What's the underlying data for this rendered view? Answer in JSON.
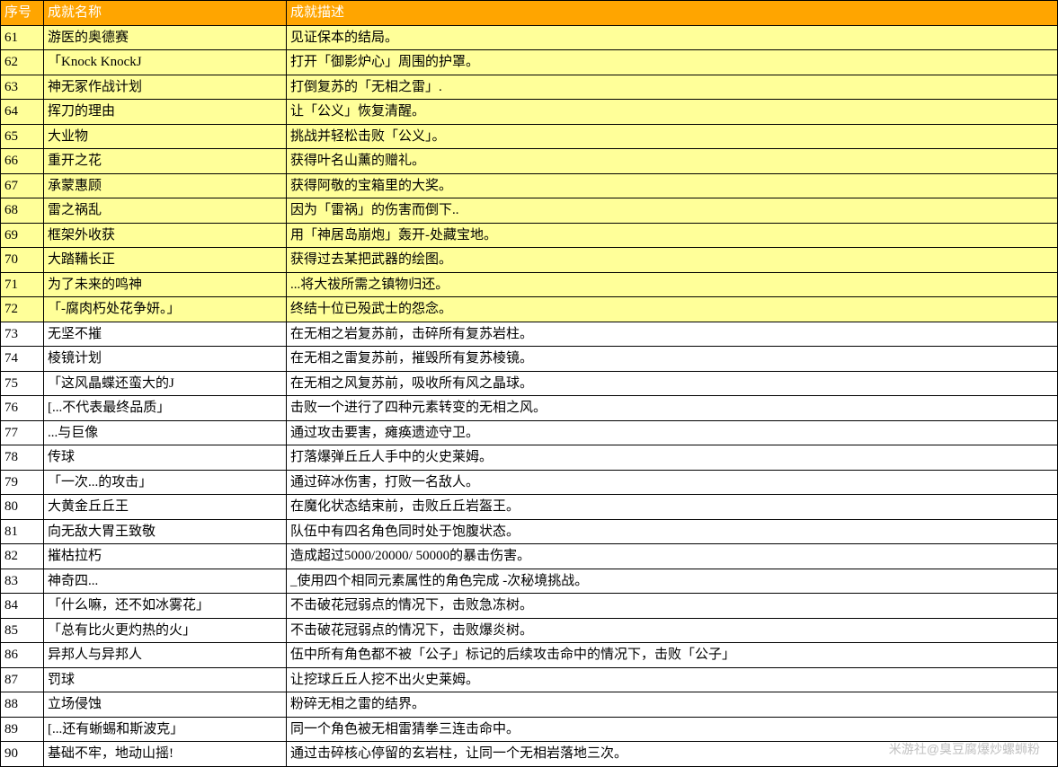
{
  "table": {
    "headers": {
      "index": "序号",
      "name": "成就名称",
      "desc": "成就描述"
    },
    "rows": [
      {
        "index": "61",
        "name": "游医的奥德赛",
        "desc": "见证保本的结局。",
        "highlighted": true
      },
      {
        "index": "62",
        "name": "「Knock KnockJ",
        "desc": "打开「御影炉心」周围的护罩。",
        "highlighted": true
      },
      {
        "index": "63",
        "name": "神无冢作战计划",
        "desc": "打倒复苏的「无相之雷」.",
        "highlighted": true
      },
      {
        "index": "64",
        "name": "挥刀的理由",
        "desc": "让「公义」恢复清醒。",
        "highlighted": true
      },
      {
        "index": "65",
        "name": "大业物",
        "desc": "挑战并轻松击败「公义」。",
        "highlighted": true
      },
      {
        "index": "66",
        "name": "重开之花",
        "desc": "获得叶名山薰的赠礼。",
        "highlighted": true
      },
      {
        "index": "67",
        "name": "承蒙惠顾",
        "desc": "获得阿敬的宝箱里的大奖。",
        "highlighted": true
      },
      {
        "index": "68",
        "name": "雷之祸乱",
        "desc": "因为「雷祸」的伤害而倒下..",
        "highlighted": true
      },
      {
        "index": "69",
        "name": "框架外收获",
        "desc": "用「神居岛崩炮」轰开-处藏宝地。",
        "highlighted": true
      },
      {
        "index": "70",
        "name": "大踏鞴长正",
        "desc": "获得过去某把武器的绘图。",
        "highlighted": true
      },
      {
        "index": "71",
        "name": "为了未来的鸣神",
        "desc": "...将大祓所需之镇物归还。",
        "highlighted": true
      },
      {
        "index": "72",
        "name": "「-腐肉朽处花争妍。」",
        "desc": "终结十位已殁武士的怨念。",
        "highlighted": true
      },
      {
        "index": "73",
        "name": "无坚不摧",
        "desc": "在无相之岩复苏前，击碎所有复苏岩柱。",
        "highlighted": false
      },
      {
        "index": "74",
        "name": "棱镜计划",
        "desc": "在无相之雷复苏前，摧毁所有复苏棱镜。",
        "highlighted": false
      },
      {
        "index": "75",
        "name": "「这风晶蝶还蛮大的J",
        "desc": "在无相之风复苏前，吸收所有风之晶球。",
        "highlighted": false
      },
      {
        "index": "76",
        "name": "[...不代表最终品质」",
        "desc": "击败一个进行了四种元素转变的无相之风。",
        "highlighted": false
      },
      {
        "index": "77",
        "name": "...与巨像",
        "desc": "通过攻击要害，瘫痪遗迹守卫。",
        "highlighted": false
      },
      {
        "index": "78",
        "name": "传球",
        "desc": "打落爆弹丘丘人手中的火史莱姆。",
        "highlighted": false
      },
      {
        "index": "79",
        "name": "「一次...的攻击」",
        "desc": "通过碎冰伤害，打败一名敌人。",
        "highlighted": false
      },
      {
        "index": "80",
        "name": "大黄金丘丘王",
        "desc": "在魔化状态结束前，击败丘丘岩盔王。",
        "highlighted": false
      },
      {
        "index": "81",
        "name": "向无敌大胃王致敬",
        "desc": "队伍中有四名角色同时处于饱腹状态。",
        "highlighted": false
      },
      {
        "index": "82",
        "name": "摧枯拉朽",
        "desc": "造成超过5000/20000/ 50000的暴击伤害。",
        "highlighted": false
      },
      {
        "index": "83",
        "name": "神奇四...",
        "desc": "_使用四个相同元素属性的角色完成 -次秘境挑战。",
        "highlighted": false
      },
      {
        "index": "84",
        "name": "「什么嘛，还不如冰雾花」",
        "desc": "不击破花冠弱点的情况下，击败急冻树。",
        "highlighted": false
      },
      {
        "index": "85",
        "name": "「总有比火更灼热的火」",
        "desc": "不击破花冠弱点的情况下，击败爆炎树。",
        "highlighted": false
      },
      {
        "index": "86",
        "name": "异邦人与异邦人",
        "desc": "伍中所有角色都不被「公子」标记的后续攻击命中的情况下，击败「公子」",
        "highlighted": false
      },
      {
        "index": "87",
        "name": "罚球",
        "desc": "让挖球丘丘人挖不出火史莱姆。",
        "highlighted": false
      },
      {
        "index": "88",
        "name": "立场侵蚀",
        "desc": "粉碎无相之雷的结界。",
        "highlighted": false
      },
      {
        "index": "89",
        "name": "[...还有蜥蜴和斯波克」",
        "desc": "同一个角色被无相雷猜拳三连击命中。",
        "highlighted": false
      },
      {
        "index": "90",
        "name": "基础不牢，地动山摇!",
        "desc": "通过击碎核心停留的玄岩柱，让同一个无相岩落地三次。",
        "highlighted": false
      }
    ]
  },
  "watermark": "米游社@臭豆腐爆炒螺蛳粉"
}
